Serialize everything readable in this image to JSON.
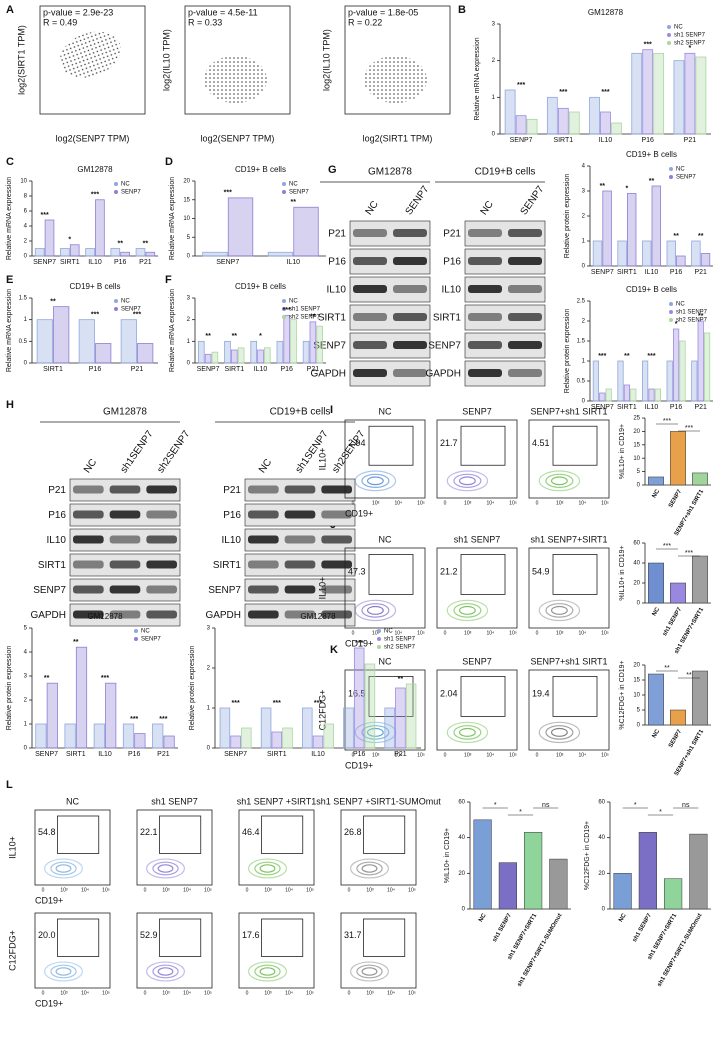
{
  "panel_labels": [
    "A",
    "B",
    "C",
    "D",
    "E",
    "F",
    "G",
    "H",
    "I",
    "J",
    "K",
    "L"
  ],
  "scatter_panels": [
    {
      "stats": [
        "p-value = 2.9e-23",
        "R = 0.49"
      ],
      "xlabel": "log2(SENP7 TPM)",
      "ylabel": "log2(SIRT1 TPM)"
    },
    {
      "stats": [
        "p-value = 4.5e-11",
        "R = 0.33"
      ],
      "xlabel": "log2(SENP7 TPM)",
      "ylabel": "log2(IL10 TPM)"
    },
    {
      "stats": [
        "p-value = 1.8e-05",
        "R = 0.22"
      ],
      "xlabel": "log2(SIRT1 TPM)",
      "ylabel": "log2(IL10 TPM)"
    }
  ],
  "blots": [
    {
      "title": "GM12878",
      "lanes": [
        "NC",
        "SENP7"
      ],
      "rows": [
        "P21",
        "P16",
        "IL10",
        "SIRT1",
        "SENP7",
        "GAPDH"
      ]
    },
    {
      "title": "CD19+B cells",
      "lanes": [
        "NC",
        "SENP7"
      ],
      "rows": [
        "P21",
        "P16",
        "IL10",
        "SIRT1",
        "SENP7",
        "GAPDH"
      ]
    },
    {
      "title": "GM12878",
      "lanes": [
        "NC",
        "sh1SENP7",
        "sh2SENP7"
      ],
      "rows": [
        "P21",
        "P16",
        "IL10",
        "SIRT1",
        "SENP7",
        "GAPDH"
      ]
    },
    {
      "title": "CD19+B cells",
      "lanes": [
        "NC",
        "sh1SENP7",
        "sh2SENP7"
      ],
      "rows": [
        "P21",
        "P16",
        "IL10",
        "SIRT1",
        "SENP7",
        "GAPDH"
      ]
    }
  ],
  "flow_ticks": [
    "0",
    "10³",
    "10⁴",
    "10⁵"
  ],
  "flows": [
    {
      "titles": [
        "NC",
        "SENP7",
        "SENP7+sh1 SIRT1"
      ],
      "xlabel": "CD19+",
      "rows": [
        {
          "ylabel": "IL10+",
          "gates": [
            "2.94",
            "21.7",
            "4.51"
          ]
        }
      ]
    },
    {
      "titles": [
        "NC",
        "sh1 SENP7",
        "sh1 SENP7+SIRT1"
      ],
      "xlabel": "CD19+",
      "rows": [
        {
          "ylabel": "IL10+",
          "gates": [
            "47.3",
            "21.2",
            "54.9"
          ]
        }
      ]
    },
    {
      "titles": [
        "NC",
        "SENP7",
        "SENP7+sh1 SIRT1"
      ],
      "xlabel": "CD19+",
      "rows": [
        {
          "ylabel": "C12FDG+",
          "gates": [
            "16.5",
            "2.04",
            "19.4"
          ]
        }
      ]
    },
    {
      "titles": [
        "NC",
        "sh1 SENP7",
        "sh1 SENP7 +SIRT1",
        "sh1 SENP7 +SIRT1-SUMOmut"
      ],
      "xlabel": "CD19+",
      "rows": [
        {
          "ylabel": "IL10+",
          "gates": [
            "54.8",
            "22.1",
            "46.4",
            "26.8"
          ]
        },
        {
          "ylabel": "C12FDG+",
          "gates": [
            "20.0",
            "52.9",
            "17.6",
            "31.7"
          ]
        }
      ]
    }
  ],
  "chart_data": [
    {
      "type": "bar",
      "title": "GM12878",
      "ylabel": "Relative mRNA expression",
      "categories": [
        "SENP7",
        "SIRT1",
        "IL10",
        "P16",
        "P21"
      ],
      "series": [
        {
          "name": "NC",
          "color": "#8fa8dc",
          "values": [
            1.2,
            1.0,
            1.0,
            2.2,
            2.0
          ]
        },
        {
          "name": "sh1 SENP7",
          "color": "#9b8ae0",
          "values": [
            0.5,
            0.7,
            0.6,
            2.3,
            2.2
          ]
        },
        {
          "name": "sh2 SENP7",
          "color": "#a8d8a0",
          "values": [
            0.4,
            0.6,
            0.3,
            2.2,
            2.1
          ]
        }
      ],
      "ylim": [
        0,
        3
      ],
      "yticks": [
        0,
        1,
        2,
        3
      ],
      "annotations": [
        "***",
        "***",
        "***",
        "***",
        "*"
      ]
    },
    {
      "type": "bar",
      "title": "GM12878",
      "ylabel": "Relative mRNA expression",
      "categories": [
        "SENP7",
        "SIRT1",
        "IL10",
        "P16",
        "P21"
      ],
      "series": [
        {
          "name": "NC",
          "color": "#8fa8dc",
          "values": [
            1,
            1,
            1,
            1,
            1
          ]
        },
        {
          "name": "SENP7",
          "color": "#8d7fd4",
          "values": [
            4.8,
            1.5,
            7.5,
            0.5,
            0.5
          ]
        }
      ],
      "ylim": [
        0,
        10
      ],
      "yticks": [
        0,
        2,
        4,
        6,
        8,
        10
      ],
      "annotations": [
        "***",
        "*",
        "***",
        "**",
        "**"
      ]
    },
    {
      "type": "bar",
      "title": "CD19+ B cells",
      "ylabel": "Relative mRNA expression",
      "categories": [
        "SENP7",
        "IL10"
      ],
      "series": [
        {
          "name": "NC",
          "color": "#8fa8dc",
          "values": [
            1,
            1
          ]
        },
        {
          "name": "SENP7",
          "color": "#8d7fd4",
          "values": [
            15.5,
            13
          ]
        }
      ],
      "ylim": [
        0,
        20
      ],
      "yticks": [
        0,
        5,
        10,
        15,
        20
      ],
      "annotations": [
        "***",
        "**"
      ]
    },
    {
      "type": "bar",
      "title": "CD19+ B cells",
      "ylabel": "Relative mRNA expression",
      "categories": [
        "SIRT1",
        "P16",
        "P21"
      ],
      "series": [
        {
          "name": "NC",
          "color": "#8fa8dc",
          "values": [
            1,
            1,
            1
          ]
        },
        {
          "name": "SENP7",
          "color": "#8d7fd4",
          "values": [
            1.3,
            0.45,
            0.45
          ]
        }
      ],
      "ylim": [
        0,
        1.5
      ],
      "yticks": [
        0,
        0.5,
        1,
        1.5
      ],
      "annotations": [
        "**",
        "***",
        "***"
      ]
    },
    {
      "type": "bar",
      "title": "CD19+ B cells",
      "ylabel": "Relative mRNA expression",
      "categories": [
        "SENP7",
        "SIRT1",
        "IL10",
        "P16",
        "P21"
      ],
      "series": [
        {
          "name": "NC",
          "color": "#8fa8dc",
          "values": [
            1,
            1,
            1,
            1,
            1
          ]
        },
        {
          "name": "sh1 SENP7",
          "color": "#9b8ae0",
          "values": [
            0.4,
            0.6,
            0.6,
            2.2,
            1.9
          ]
        },
        {
          "name": "sh2 SENP7",
          "color": "#a8d8a0",
          "values": [
            0.5,
            0.7,
            0.7,
            2.0,
            1.7
          ]
        }
      ],
      "ylim": [
        0,
        3
      ],
      "yticks": [
        0,
        1,
        2,
        3
      ],
      "annotations": [
        "**",
        "**",
        "*",
        "***",
        "**"
      ]
    },
    {
      "type": "bar",
      "title": "CD19+ B cells",
      "ylabel": "Relative protein expression",
      "categories": [
        "SENP7",
        "SIRT1",
        "IL10",
        "P16",
        "P21"
      ],
      "series": [
        {
          "name": "NC",
          "color": "#8fa8dc",
          "values": [
            1,
            1,
            1,
            1,
            1
          ]
        },
        {
          "name": "SENP7",
          "color": "#8d7fd4",
          "values": [
            3,
            2.9,
            3.2,
            0.4,
            0.5
          ]
        }
      ],
      "ylim": [
        0,
        4
      ],
      "yticks": [
        0,
        1,
        2,
        3,
        4
      ],
      "annotations": [
        "**",
        "*",
        "**",
        "**",
        "**"
      ]
    },
    {
      "type": "bar",
      "title": "CD19+ B cells",
      "ylabel": "Relative protein expression",
      "categories": [
        "SENP7",
        "SIRT1",
        "IL10",
        "P16",
        "P21"
      ],
      "series": [
        {
          "name": "NC",
          "color": "#8fa8dc",
          "values": [
            1,
            1,
            1,
            1,
            1
          ]
        },
        {
          "name": "sh1 SENP7",
          "color": "#9b8ae0",
          "values": [
            0.2,
            0.4,
            0.3,
            1.8,
            2.0
          ]
        },
        {
          "name": "sh2 SENP7",
          "color": "#a8d8a0",
          "values": [
            0.3,
            0.3,
            0.3,
            1.5,
            1.7
          ]
        }
      ],
      "ylim": [
        0,
        2.5
      ],
      "yticks": [
        0,
        0.5,
        1,
        1.5,
        2,
        2.5
      ],
      "annotations": [
        "***",
        "**",
        "***",
        "*",
        "**"
      ]
    },
    {
      "type": "bar",
      "title": "GM12878",
      "ylabel": "Relative protein expression",
      "categories": [
        "SENP7",
        "SIRT1",
        "IL10",
        "P16",
        "P21"
      ],
      "series": [
        {
          "name": "NC",
          "color": "#8fa8dc",
          "values": [
            1,
            1,
            1,
            1,
            1
          ]
        },
        {
          "name": "SENP7",
          "color": "#8d7fd4",
          "values": [
            2.7,
            4.2,
            2.7,
            0.6,
            0.5
          ]
        }
      ],
      "ylim": [
        0,
        5
      ],
      "yticks": [
        0,
        1,
        2,
        3,
        4,
        5
      ],
      "annotations": [
        "**",
        "**",
        "***",
        "***",
        "***"
      ]
    },
    {
      "type": "bar",
      "title": "GM12878",
      "ylabel": "Relative protein expression",
      "categories": [
        "SENP7",
        "SIRT1",
        "IL10",
        "P16",
        "P21"
      ],
      "series": [
        {
          "name": "NC",
          "color": "#8fa8dc",
          "values": [
            1,
            1,
            1,
            1,
            1
          ]
        },
        {
          "name": "sh1 SENP7",
          "color": "#9b8ae0",
          "values": [
            0.3,
            0.4,
            0.3,
            2.5,
            1.5
          ]
        },
        {
          "name": "sh2 SENP7",
          "color": "#a8d8a0",
          "values": [
            0.5,
            0.5,
            0.6,
            2.1,
            1.6
          ]
        }
      ],
      "ylim": [
        0,
        3
      ],
      "yticks": [
        0,
        1,
        2,
        3
      ],
      "annotations": [
        "***",
        "***",
        "***",
        "***",
        "**"
      ]
    },
    {
      "type": "bar",
      "ylabel": "%IL10+ in CD19+",
      "categories": [
        "NC",
        "SENP7",
        "SENP7+sh1 SIRT1"
      ],
      "values": [
        3,
        20,
        4.5
      ],
      "colors": [
        "#7f9fd6",
        "#e8a04a",
        "#9fd49a"
      ],
      "ylim": [
        0,
        25
      ],
      "yticks": [
        0,
        5,
        10,
        15,
        20,
        25
      ],
      "annotations": [
        "***",
        "***"
      ]
    },
    {
      "type": "bar",
      "ylabel": "%IL10+ in CD19+",
      "categories": [
        "NC",
        "sh1 SENP7",
        "sh1 SENP7+SIRT1"
      ],
      "values": [
        40,
        20,
        47
      ],
      "colors": [
        "#6f8fd0",
        "#9a88e0",
        "#a0a0a0"
      ],
      "ylim": [
        0,
        60
      ],
      "yticks": [
        0,
        20,
        40,
        60
      ],
      "annotations": [
        "***",
        "***"
      ]
    },
    {
      "type": "bar",
      "ylabel": "%C12FDG+ in CD19+",
      "categories": [
        "NC",
        "SENP7",
        "SENP7+sh1 SIRT1"
      ],
      "values": [
        17,
        5,
        18
      ],
      "colors": [
        "#7f9fd6",
        "#e8a04a",
        "#a0a0a0"
      ],
      "ylim": [
        0,
        20
      ],
      "yticks": [
        0,
        5,
        10,
        15,
        20
      ],
      "annotations": [
        "**",
        "**"
      ]
    },
    {
      "type": "bar",
      "ylabel": "%IL10+ in CD19+",
      "categories": [
        "NC",
        "sh1 SENP7",
        "sh1 SENP7+SIRT1",
        "sh1 SENP7+SIRT1-SUMOmut"
      ],
      "values": [
        50,
        26,
        43,
        28
      ],
      "colors": [
        "#7a9fd6",
        "#7a6fc4",
        "#8fd49a",
        "#999999"
      ],
      "ylim": [
        0,
        60
      ],
      "yticks": [
        0,
        20,
        40,
        60
      ],
      "annotations": [
        "*",
        "*",
        "ns"
      ]
    },
    {
      "type": "bar",
      "ylabel": "%C12FDG+ in CD19+",
      "categories": [
        "NC",
        "sh1 SENP7",
        "sh1 SENP7+SIRT1",
        "sh1 SENP7+SIRT1-SUMOmut"
      ],
      "values": [
        20,
        43,
        17,
        42
      ],
      "colors": [
        "#7a9fd6",
        "#7a6fc4",
        "#8fd49a",
        "#999999"
      ],
      "ylim": [
        0,
        60
      ],
      "yticks": [
        0,
        20,
        40,
        60
      ],
      "annotations": [
        "*",
        "*",
        "ns"
      ]
    }
  ]
}
